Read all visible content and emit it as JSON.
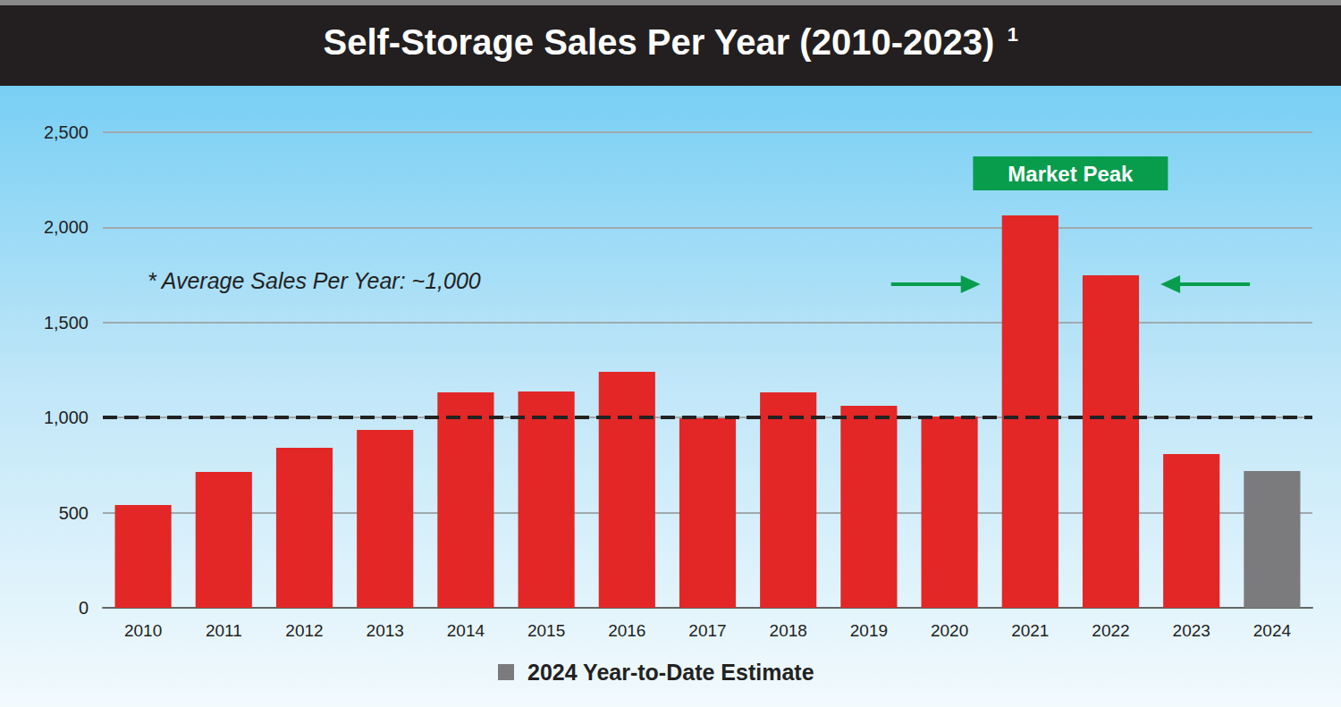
{
  "chart_data": {
    "type": "bar",
    "title": "Self-Storage Sales Per Year (2010-2023)",
    "title_note": "1",
    "categories": [
      "2010",
      "2011",
      "2012",
      "2013",
      "2014",
      "2015",
      "2016",
      "2017",
      "2018",
      "2019",
      "2020",
      "2021",
      "2022",
      "2023",
      "2024"
    ],
    "values": [
      540,
      714,
      841,
      935,
      1133,
      1137,
      1241,
      996,
      1133,
      1062,
      1006,
      2063,
      1748,
      808,
      719
    ],
    "colors": [
      "#e22726",
      "#e22726",
      "#e22726",
      "#e22726",
      "#e22726",
      "#e22726",
      "#e22726",
      "#e22726",
      "#e22726",
      "#e22726",
      "#e22726",
      "#e22726",
      "#e22726",
      "#e22726",
      "#7b7b7d"
    ],
    "ylim": [
      0,
      2500
    ],
    "yticks": [
      0,
      500,
      {
        "value": 1000,
        "label": "1,000"
      },
      {
        "value": 1500,
        "label": "1,500"
      },
      {
        "value": 2000,
        "label": "2,000"
      },
      {
        "value": 2500,
        "label": "2,500"
      }
    ],
    "grid": true,
    "reference_line": {
      "value": 1000,
      "label": "* Average Sales Per Year: ~1,000",
      "line_style": "dashed"
    },
    "annotations": [
      {
        "text": "Market Peak",
        "categories": [
          "2021",
          "2022"
        ]
      }
    ],
    "legend_text": "2024 Year-to-Date Estimate"
  }
}
